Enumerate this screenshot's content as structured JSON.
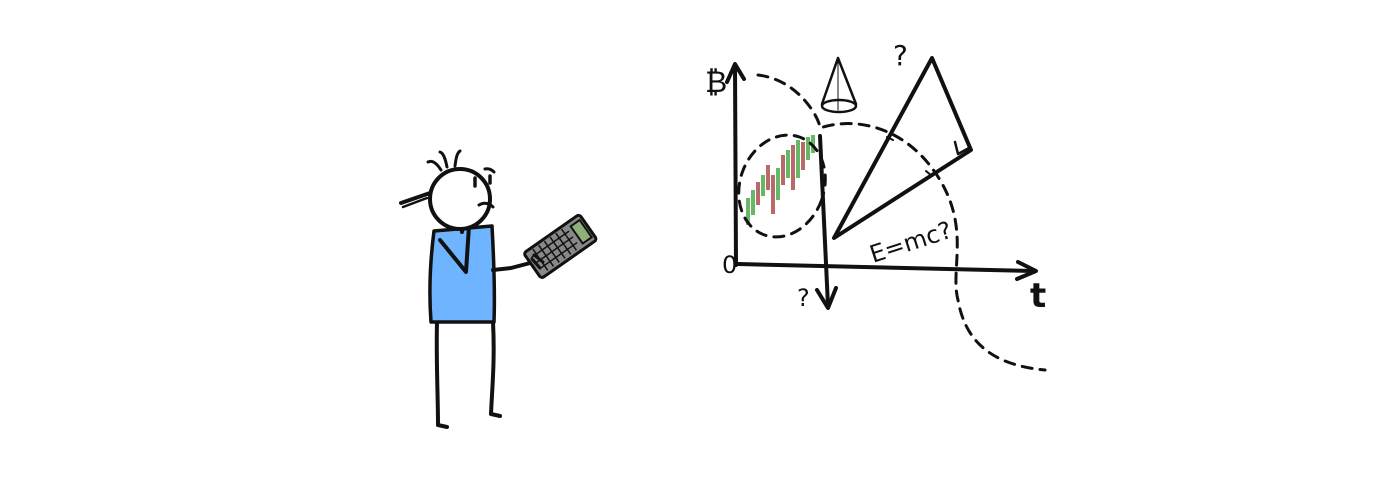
{
  "illustration": {
    "labels": {
      "y_axis_symbol": "₿",
      "origin": "0",
      "x_axis_label": "t",
      "top_question": "?",
      "down_question": "?",
      "formula": "E=mc?"
    },
    "colors": {
      "shirt": "#6eb4ff",
      "candle_up": "#66b866",
      "candle_down": "#b86a6a",
      "calculator_screen": "#8fb07a",
      "ink": "#111111"
    }
  }
}
